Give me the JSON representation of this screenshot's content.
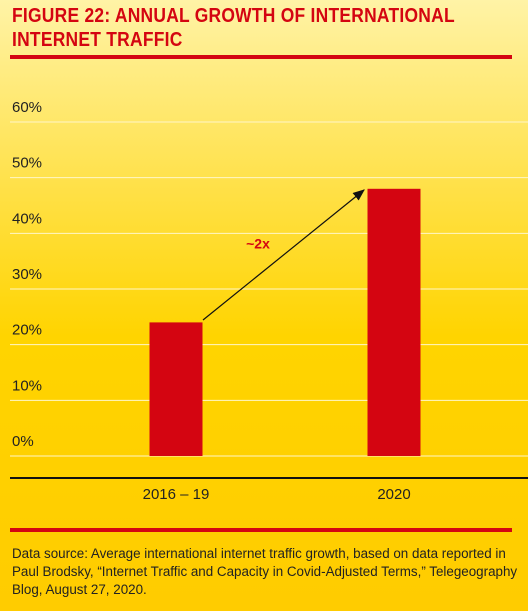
{
  "chart_data": {
    "type": "bar",
    "title": "FIGURE 22: ANNUAL GROWTH OF INTERNATIONAL INTERNET TRAFFIC",
    "categories": [
      "2016 – 19",
      "2020"
    ],
    "values": [
      24,
      48
    ],
    "color": "#d40511",
    "ylim": [
      0,
      60
    ],
    "yticks": [
      {
        "value": 0,
        "label": "0%"
      },
      {
        "value": 10,
        "label": "10%"
      },
      {
        "value": 20,
        "label": "20%"
      },
      {
        "value": 30,
        "label": "30%"
      },
      {
        "value": 40,
        "label": "40%"
      },
      {
        "value": 50,
        "label": "50%"
      },
      {
        "value": 60,
        "label": "60%"
      }
    ],
    "grid": true,
    "annotation": "~2x",
    "source": "Data source: Average international internet traffic growth, based on data reported in Paul Brodsky, “Internet Traffic and Capacity in Covid-Adjusted Terms,” Telegeography Blog, August 27, 2020."
  }
}
